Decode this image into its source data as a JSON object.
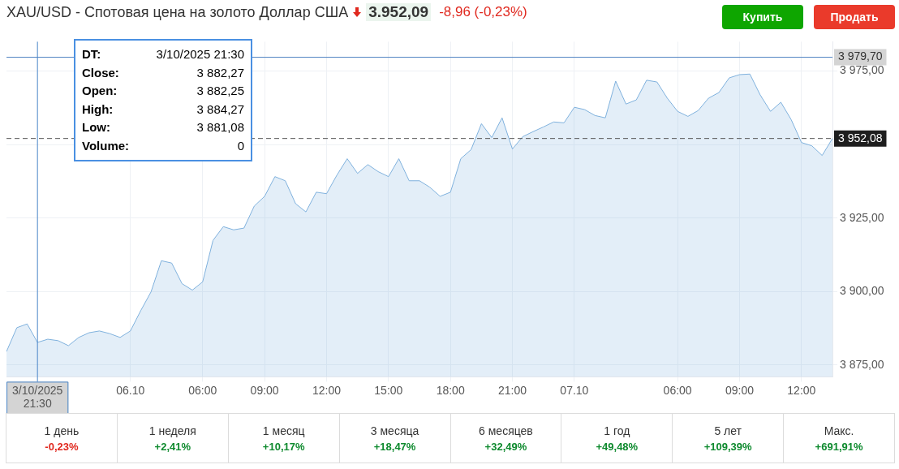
{
  "chart_data": {
    "type": "area",
    "title": "XAU/USD - Спотовая цена на золото Доллар США",
    "categories": [
      null,
      null,
      null,
      "3/10/2025 21:30",
      null,
      null,
      null,
      null,
      null,
      null,
      null,
      null,
      "06.10",
      null,
      null,
      null,
      null,
      null,
      null,
      "06:00",
      null,
      null,
      null,
      null,
      null,
      "09:00",
      null,
      null,
      null,
      null,
      null,
      "12:00",
      null,
      null,
      null,
      null,
      null,
      "15:00",
      null,
      null,
      null,
      null,
      null,
      "18:00",
      null,
      null,
      null,
      null,
      null,
      "21:00",
      null,
      null,
      null,
      null,
      null,
      "07.10",
      null,
      null,
      null,
      null,
      null,
      null,
      null,
      null,
      null,
      "06:00",
      null,
      null,
      null,
      null,
      null,
      "09:00",
      null,
      null,
      null,
      null,
      null,
      "12:00",
      null,
      null,
      null
    ],
    "series": [
      {
        "color": "#7fb1dd",
        "values": [
          3879.6,
          3887.7,
          3889.0,
          3882.7,
          3883.8,
          3883.3,
          3881.6,
          3884.4,
          3886.0,
          3886.6,
          3885.7,
          3884.4,
          3886.6,
          3893.5,
          3899.9,
          3910.5,
          3909.7,
          3902.7,
          3900.5,
          3903.3,
          3917.4,
          3922.1,
          3921.0,
          3921.6,
          3929.1,
          3932.4,
          3939.1,
          3937.7,
          3929.9,
          3927.1,
          3933.8,
          3933.3,
          3939.6,
          3945.2,
          3940.2,
          3943.2,
          3940.8,
          3939.1,
          3945.2,
          3937.7,
          3937.7,
          3935.5,
          3932.4,
          3933.8,
          3945.2,
          3948.3,
          3957.1,
          3952.4,
          3959.1,
          3948.5,
          3952.7,
          3954.4,
          3956.0,
          3957.7,
          3957.4,
          3962.7,
          3961.9,
          3959.9,
          3959.1,
          3971.6,
          3963.8,
          3965.2,
          3971.9,
          3971.3,
          3965.8,
          3961.3,
          3959.6,
          3961.6,
          3965.8,
          3967.7,
          3972.7,
          3973.8,
          3974.0,
          3966.9,
          3961.3,
          3964.4,
          3958.5,
          3950.7,
          3949.6,
          3946.3,
          3952.1
        ]
      }
    ],
    "ylim": [
      3871,
      3985
    ],
    "yticks": [
      {
        "value": 3875,
        "label": "3 875,00"
      },
      {
        "value": 3900,
        "label": "3 900,00"
      },
      {
        "value": 3925,
        "label": "3 925,00"
      },
      {
        "value": 3950,
        "label": null
      },
      {
        "value": 3975,
        "label": "3 975,00"
      }
    ],
    "grid": true,
    "ref_lines": [
      {
        "axis": "y",
        "value": 3979.7,
        "label": "3 979,70",
        "color": "#4a7fc1",
        "line_style": "solid"
      },
      {
        "axis": "y",
        "value": 3952.08,
        "label": "3 952,08",
        "color": "#555555",
        "line_style": "dashed"
      },
      {
        "axis": "x",
        "value": "3/10/2025 21:30",
        "label": null,
        "color": "#4a86c8",
        "line_style": "solid"
      }
    ],
    "annotations": [
      "3.952,09",
      "-8,96 (-0,23%)",
      "Купить",
      "Продать",
      "DT: 3/10/2025 21:30",
      "Close: 3 882,27",
      "Open: 3 882,25",
      "High: 3 884,27",
      "Low: 3 881,08",
      "Volume: 0",
      "1 день",
      "-0,23%",
      "1 неделя",
      "+2,41%",
      "1 месяц",
      "+10,17%",
      "3 месяца",
      "+18,47%",
      "6 месяцев",
      "+32,49%",
      "1 год",
      "+49,48%",
      "5 лет",
      "+109,39%",
      "Макс.",
      "+691,91%"
    ]
  }
}
